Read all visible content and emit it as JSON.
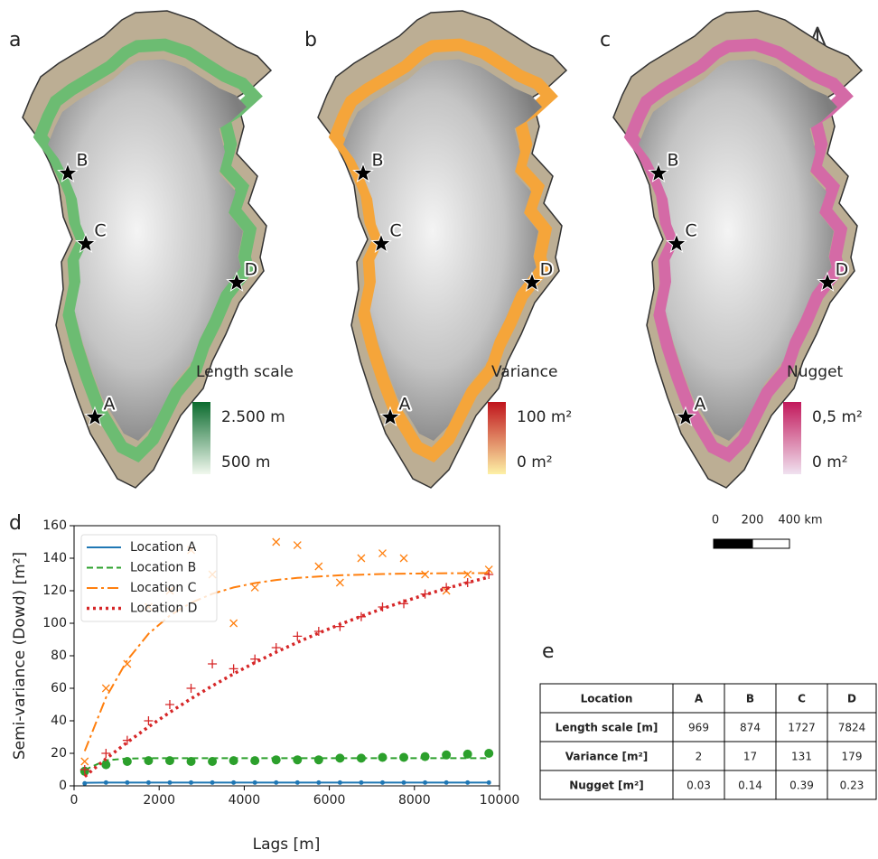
{
  "maps": [
    {
      "label": "a",
      "legend_title": "Length scale",
      "colorbar_labels": [
        "2.500 m",
        "500 m"
      ],
      "colors": {
        "high": "#0b6b2e",
        "low": "#f1f8ee",
        "coast": "#6cbc72"
      }
    },
    {
      "label": "b",
      "legend_title": "Variance",
      "colorbar_labels": [
        "100 m²",
        "0 m²"
      ],
      "colors": {
        "high": "#c0141c",
        "low": "#fdf1a6",
        "coast": "#f5a53a"
      }
    },
    {
      "label": "c",
      "legend_title": "Nugget",
      "colorbar_labels": [
        "0,5 m²",
        "0 m²"
      ],
      "colors": {
        "high": "#c2185b",
        "low": "#f0e2f0",
        "coast": "#d46aa6"
      }
    }
  ],
  "stations": [
    "A",
    "B",
    "C",
    "D"
  ],
  "scale_bar": [
    "0",
    "200",
    "400 km"
  ],
  "chart_data": {
    "type": "line",
    "label": "d",
    "xlabel": "Lags [m]",
    "ylabel": "Semi-variance (Dowd) [m²]",
    "xlim": [
      0,
      10000
    ],
    "ylim": [
      0,
      160
    ],
    "xticks": [
      0,
      2000,
      4000,
      6000,
      8000,
      10000
    ],
    "yticks": [
      0,
      20,
      40,
      60,
      80,
      100,
      120,
      140,
      160
    ],
    "legend": "upper left",
    "x": [
      250,
      750,
      1250,
      1750,
      2250,
      2750,
      3250,
      3750,
      4250,
      4750,
      5250,
      5750,
      6250,
      6750,
      7250,
      7750,
      8250,
      8750,
      9250,
      9750
    ],
    "series": [
      {
        "name": "Location A",
        "color": "#1f77b4",
        "linestyle": "solid",
        "marker": "dot",
        "values": [
          1.5,
          2,
          2,
          2,
          2,
          2,
          2,
          2,
          2,
          2,
          2,
          2,
          2,
          2,
          2,
          2,
          2,
          2,
          2,
          2
        ],
        "fit": [
          1.9,
          2,
          2,
          2,
          2,
          2,
          2,
          2,
          2,
          2,
          2,
          2,
          2,
          2,
          2,
          2,
          2,
          2,
          2,
          2
        ]
      },
      {
        "name": "Location B",
        "color": "#2ca02c",
        "linestyle": "dashed",
        "marker": "circle",
        "values": [
          9,
          13,
          15,
          15.5,
          15.5,
          15,
          15,
          15.5,
          15.5,
          16,
          16,
          16,
          17,
          17,
          17.5,
          17.5,
          18,
          19,
          19.5,
          20
        ],
        "fit": [
          9.8,
          15.7,
          16.8,
          17,
          17,
          17,
          17,
          17,
          17,
          17,
          17,
          17,
          17,
          17,
          17,
          17,
          17,
          17,
          17,
          17
        ]
      },
      {
        "name": "Location C",
        "color": "#ff7f0e",
        "linestyle": "dashdot",
        "marker": "x",
        "values": [
          15,
          60,
          75,
          110,
          120,
          145,
          130,
          100,
          122,
          150,
          148,
          135,
          125,
          140,
          143,
          140,
          130,
          120,
          130,
          133
        ],
        "fit": [
          21.4,
          54.3,
          77.3,
          93.5,
          104.7,
          112.6,
          118.1,
          122,
          124.7,
          126.6,
          127.9,
          128.8,
          129.5,
          129.9,
          130.3,
          130.5,
          130.6,
          130.8,
          130.8,
          130.9
        ]
      },
      {
        "name": "Location D",
        "color": "#d62728",
        "linestyle": "dotted",
        "marker": "plus",
        "values": [
          10,
          20,
          28,
          40,
          50,
          60,
          75,
          72,
          78,
          85,
          92,
          95,
          98,
          104,
          110,
          112,
          118,
          122,
          125,
          130
        ],
        "fit": [
          5.7,
          16.6,
          26.8,
          36.3,
          45.2,
          53.6,
          61.5,
          68.9,
          75.8,
          82.2,
          88.3,
          94,
          99.3,
          104.3,
          109,
          113.4,
          117.5,
          121.4,
          125,
          128.4
        ]
      }
    ]
  },
  "table": {
    "label": "e",
    "header": [
      "Location",
      "A",
      "B",
      "C",
      "D"
    ],
    "rows": [
      [
        "Length scale [m]",
        969,
        874,
        1727,
        7824
      ],
      [
        "Variance [m²]",
        2,
        17,
        131,
        179
      ],
      [
        "Nugget [m²]",
        0.03,
        0.14,
        0.39,
        0.23
      ]
    ]
  }
}
